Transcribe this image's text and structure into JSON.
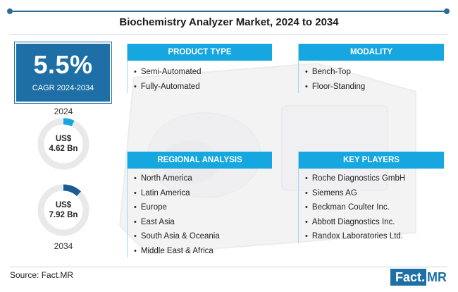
{
  "title": "Biochemistry Analyzer Market, 2024 to 2034",
  "cagr": {
    "value": "5.5%",
    "label": "CAGR 2024-2034"
  },
  "start": {
    "year": "2024",
    "currency": "US$",
    "amount": "4.62 Bn",
    "fill": 0.07
  },
  "end": {
    "year": "2034",
    "currency": "US$",
    "amount": "7.92 Bn",
    "fill": 0.12
  },
  "product_type": {
    "heading": "PRODUCT TYPE",
    "items": [
      "Semi-Automated",
      "Fully-Automated"
    ]
  },
  "modality": {
    "heading": "MODALITY",
    "items": [
      "Bench-Top",
      "Floor-Standing"
    ]
  },
  "regional": {
    "heading": "REGIONAL ANALYSIS",
    "items": [
      "North America",
      "Latin America",
      "Europe",
      "East Asia",
      "South Asia & Oceania",
      "Middle East & Africa"
    ]
  },
  "key_players": {
    "heading": "KEY PLAYERS",
    "items": [
      "Roche Diagnostics GmbH",
      "Siemens AG",
      "Beckman Coulter Inc.",
      "Abbott Diagnostics Inc.",
      "Randox Laboratories Ltd."
    ]
  },
  "footer": {
    "source": "Source: Fact.MR",
    "brand_left": "Fact.",
    "brand_right": "MR"
  },
  "colors": {
    "accent": "#17a7e0",
    "primary": "#1d6fa6",
    "donut_2024": "#17a7e0",
    "donut_2034": "#1d5c92",
    "track": "#e9e9e9"
  }
}
